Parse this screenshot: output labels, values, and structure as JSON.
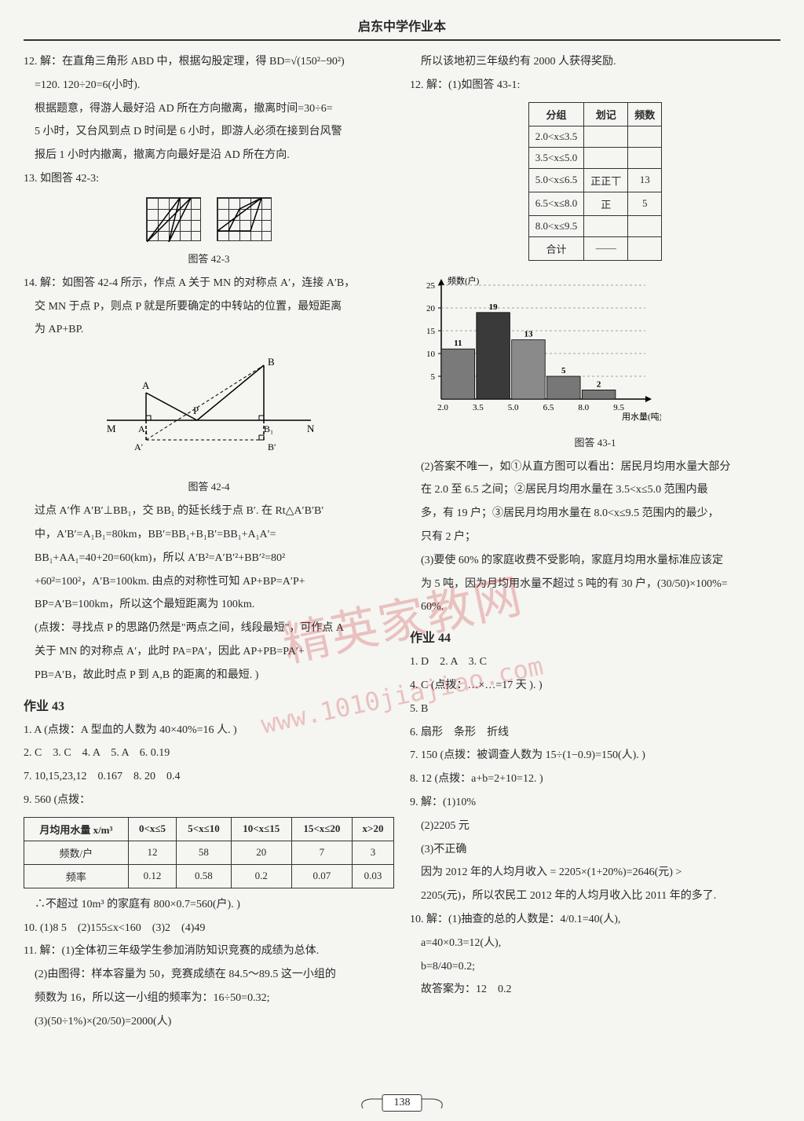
{
  "page": {
    "title": "启东中学作业本",
    "number": "138",
    "watermark_main": "精英家教网",
    "watermark_url": "www.1010jiajiao.com"
  },
  "left": {
    "p12_l1": "12. 解：在直角三角形 ABD 中，根据勾股定理，得 BD=√(150²−90²)",
    "p12_l2": "=120. 120÷20=6(小时).",
    "p12_l3": "根据题意，得游人最好沿 AD 所在方向撤离，撤离时间=30÷6=",
    "p12_l4": "5 小时，又台风到点 D 时间是 6 小时，即游人必须在接到台风警",
    "p12_l5": "报后 1 小时内撤离，撤离方向最好是沿 AD 所在方向.",
    "p13": "13. 如图答 42-3:",
    "fig42_3": "图答 42-3",
    "p14_l1": "14. 解：如图答 42-4 所示，作点 A 关于 MN 的对称点 A′，连接 A′B，",
    "p14_l2": "交 MN 于点 P，则点 P 就是所要确定的中转站的位置，最短距离",
    "p14_l3": "为 AP+BP.",
    "fig42_4": "图答 42-4",
    "p14_l4": "过点 A′作 A′B′⊥BB₁，交 BB₁ 的延长线于点 B′. 在 Rt△A′B′B′",
    "p14_l5": "中，A′B′=A₁B₁=80km，BB′=BB₁+B₁B′=BB₁+A₁A′=",
    "p14_l6": "BB₁+AA₁=40+20=60(km)，所以 A′B²=A′B′²+BB′²=80²",
    "p14_l7": "+60²=100²，A′B=100km. 由点的对称性可知 AP+BP=A′P+",
    "p14_l8": "BP=A′B=100km，所以这个最短距离为 100km.",
    "p14_l9": "(点拨：寻找点 P 的思路仍然是\"两点之间，线段最短\"，可作点 A",
    "p14_l10": "关于 MN 的对称点 A′，此时 PA=PA′，因此 AP+PB=PA′+",
    "p14_l11": "PB=A′B，故此时点 P 到 A,B 的距离的和最短. )",
    "hw43_title": "作业 43",
    "hw43_1": "1. A  (点拨：A 型血的人数为 40×40%=16 人. )",
    "hw43_2": "2. C　3. C　4. A　5. A　6. 0.19",
    "hw43_7": "7. 10,15,23,12　0.167　8. 20　0.4",
    "hw43_9": "9. 560  (点拨：",
    "table43": {
      "headers": [
        "月均用水量 x/m³",
        "0<x≤5",
        "5<x≤10",
        "10<x≤15",
        "15<x≤20",
        "x>20"
      ],
      "rows": [
        [
          "频数/户",
          "12",
          "58",
          "20",
          "7",
          "3"
        ],
        [
          "频率",
          "0.12",
          "0.58",
          "0.2",
          "0.07",
          "0.03"
        ]
      ]
    },
    "hw43_9b": "∴不超过 10m³ 的家庭有 800×0.7=560(户). )",
    "hw43_10": "10. (1)8  5　(2)155≤x<160　(3)2　(4)49",
    "hw43_11a": "11. 解：(1)全体初三年级学生参加消防知识竞赛的成绩为总体.",
    "hw43_11b": "(2)由图得：样本容量为 50，竞赛成绩在 84.5～89.5 这一小组的",
    "hw43_11c": "频数为 16，所以这一小组的频率为：16÷50=0.32;",
    "hw43_11d": "(3)(50÷1%)×(20/50)=2000(人)"
  },
  "right": {
    "top1": "所以该地初三年级约有 2000 人获得奖励.",
    "p12": "12. 解：(1)如图答 43-1:",
    "table12": {
      "headers": [
        "分组",
        "划记",
        "频数"
      ],
      "rows": [
        [
          "2.0<x≤3.5",
          "",
          ""
        ],
        [
          "3.5<x≤5.0",
          "",
          ""
        ],
        [
          "5.0<x≤6.5",
          "正正丅",
          "13"
        ],
        [
          "6.5<x≤8.0",
          "正",
          "5"
        ],
        [
          "8.0<x≤9.5",
          "",
          ""
        ],
        [
          "合计",
          "——",
          ""
        ]
      ]
    },
    "chart": {
      "type": "bar",
      "y_label": "频数(户)",
      "x_label": "用水量(吨)",
      "categories": [
        "2.0",
        "3.5",
        "5.0",
        "6.5",
        "8.0",
        "9.5"
      ],
      "values": [
        11,
        19,
        13,
        5,
        2
      ],
      "bar_labels": [
        "11",
        "19",
        "13",
        "5",
        "2"
      ],
      "bar_colors": [
        "#7a7a7a",
        "#3a3a3a",
        "#8a8a8a",
        "#777",
        "#777"
      ],
      "y_ticks": [
        5,
        10,
        15,
        20,
        25
      ],
      "ylim": [
        0,
        25
      ],
      "background": "#f5f5f2",
      "axis_color": "#000",
      "label_fontsize": 11
    },
    "fig43_1": "图答 43-1",
    "p12b_1": "(2)答案不唯一，如①从直方图可以看出：居民月均用水量大部分",
    "p12b_2": "在 2.0 至 6.5 之间；②居民月均用水量在 3.5<x≤5.0 范围内最",
    "p12b_3": "多，有 19 户；③居民月均用水量在 8.0<x≤9.5 范围内的最少，",
    "p12b_4": "只有 2 户；",
    "p12c_1": "(3)要使 60% 的家庭收费不受影响，家庭月均用水量标准应该定",
    "p12c_2": "为 5 吨，因为月均用水量不超过 5 吨的有 30 户，(30/50)×100%=",
    "p12c_3": "60%.",
    "hw44_title": "作业 44",
    "hw44_1": "1. D　2. A　3. C",
    "hw44_4": "4. C  (点拨：…×…=17 天 ). )",
    "hw44_5": "5. B",
    "hw44_6": "6. 扇形　条形　折线",
    "hw44_7": "7. 150  (点拨：被调查人数为 15÷(1−0.9)=150(人). )",
    "hw44_8": "8. 12  (点拨：a+b=2+10=12. )",
    "hw44_9a": "9. 解：(1)10%",
    "hw44_9b": "(2)2205 元",
    "hw44_9c": "(3)不正确",
    "hw44_9d": "因为 2012 年的人均月收入 = 2205×(1+20%)=2646(元) >",
    "hw44_9e": "2205(元)，所以农民工 2012 年的人均月收入比 2011 年的多了.",
    "hw44_10a": "10. 解：(1)抽查的总的人数是：4/0.1=40(人),",
    "hw44_10b": "a=40×0.3=12(人),",
    "hw44_10c": "b=8/40=0.2;",
    "hw44_10d": "故答案为：12　0.2"
  },
  "geom_fig": {
    "labels": {
      "A": "A",
      "Aprime": "A′",
      "A1": "A₁",
      "B": "B",
      "Bprime": "B′",
      "B1": "B₁",
      "M": "M",
      "N": "N",
      "P": "P"
    }
  }
}
